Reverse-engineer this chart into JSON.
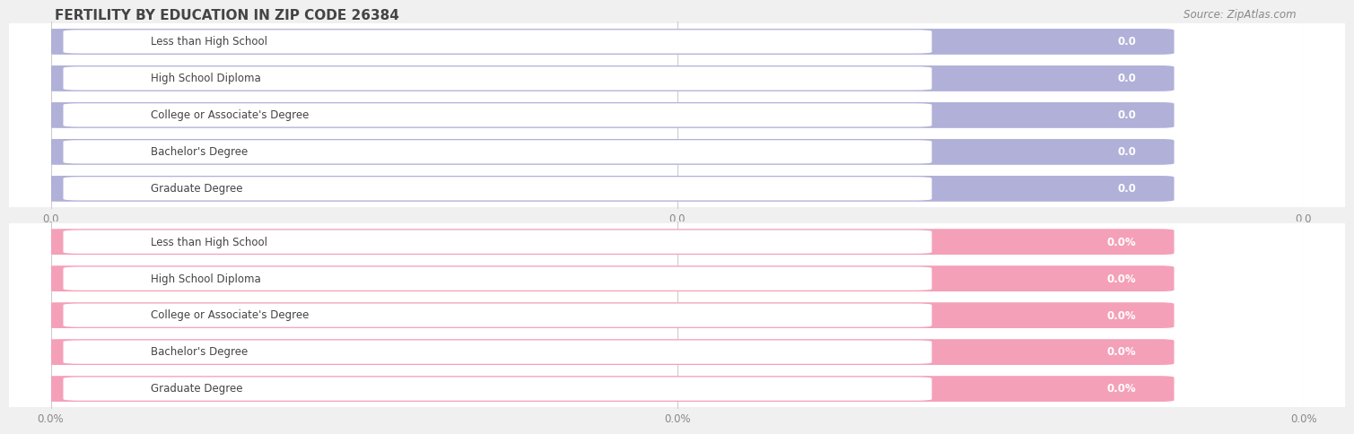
{
  "title": "FERTILITY BY EDUCATION IN ZIP CODE 26384",
  "source": "Source: ZipAtlas.com",
  "categories": [
    "Less than High School",
    "High School Diploma",
    "College or Associate's Degree",
    "Bachelor's Degree",
    "Graduate Degree"
  ],
  "top_values": [
    0.0,
    0.0,
    0.0,
    0.0,
    0.0
  ],
  "bottom_values": [
    0.0,
    0.0,
    0.0,
    0.0,
    0.0
  ],
  "top_bar_color": "#b0b0d8",
  "top_bar_bg": "#dcdcee",
  "bottom_bar_color": "#f4a0b8",
  "bottom_bar_bg": "#fadadd",
  "row_bg_color": "#ffffff",
  "outer_bg_color": "#f0f0f0",
  "title_color": "#444444",
  "source_color": "#888888",
  "tick_color": "#888888",
  "grid_color": "#cccccc",
  "text_color": "#444444",
  "value_text_color": "#888888",
  "top_xtick_labels": [
    "0.0",
    "0.0",
    "0.0"
  ],
  "bottom_xtick_labels": [
    "0.0%",
    "0.0%",
    "0.0%"
  ]
}
